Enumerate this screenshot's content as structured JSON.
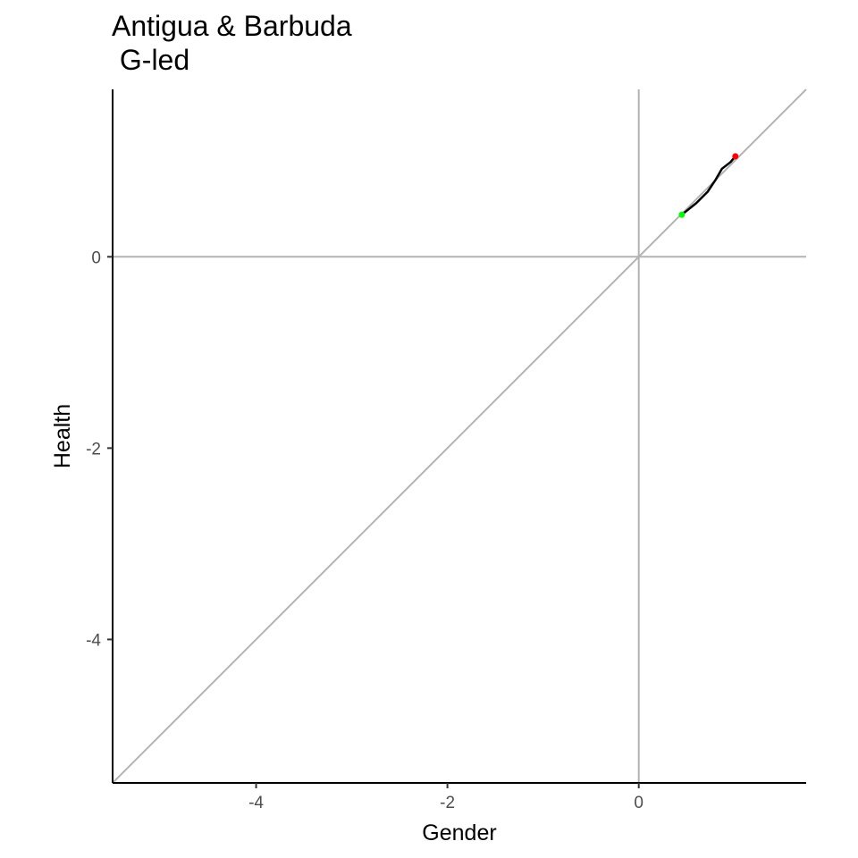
{
  "chart_data": {
    "type": "line",
    "title_lines": [
      "Antigua & Barbuda",
      " G-led"
    ],
    "xlabel": "Gender",
    "ylabel": "Health",
    "xlim": [
      -5.5,
      1.75
    ],
    "ylim": [
      -5.5,
      1.75
    ],
    "x_ticks": [
      -4,
      -2,
      0
    ],
    "y_ticks": [
      0,
      -2,
      -4
    ],
    "grid": false,
    "reference_lines": [
      {
        "name": "diagonal",
        "kind": "y=x",
        "color": "#b3b3b3"
      },
      {
        "name": "horizontal-zero",
        "kind": "y=0",
        "color": "#b3b3b3"
      },
      {
        "name": "vertical-zero",
        "kind": "x=0",
        "color": "#b3b3b3"
      }
    ],
    "series": [
      {
        "points": [
          {
            "x": 0.45,
            "y": 0.44
          },
          {
            "x": 0.6,
            "y": 0.56
          },
          {
            "x": 0.72,
            "y": 0.68
          },
          {
            "x": 0.8,
            "y": 0.8
          },
          {
            "x": 0.87,
            "y": 0.92
          },
          {
            "x": 0.96,
            "y": 0.99
          },
          {
            "x": 1.01,
            "y": 1.05
          }
        ],
        "color": "#000000",
        "start_point": {
          "x": 0.45,
          "y": 0.44,
          "color": "#00ff00"
        },
        "end_point": {
          "x": 1.01,
          "y": 1.05,
          "color": "#ff0000"
        }
      }
    ]
  }
}
